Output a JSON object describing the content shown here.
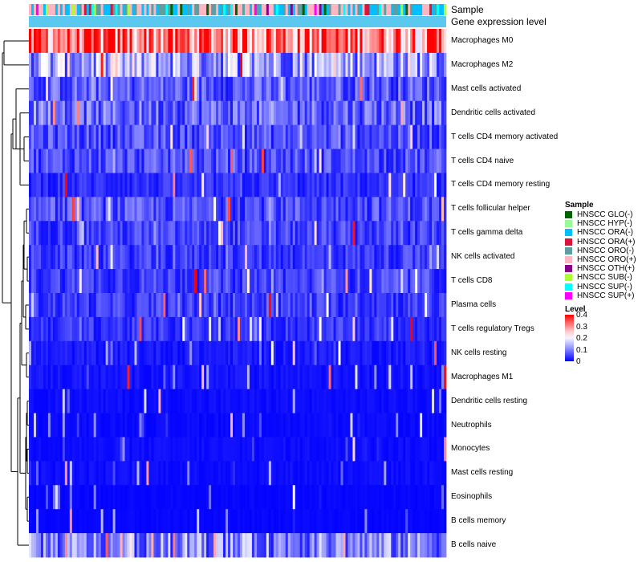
{
  "chart_data": {
    "type": "heatmap",
    "annotations": [
      "Sample",
      "Gene expression level"
    ],
    "rows": [
      {
        "name": "Macrophages M0",
        "mean": 0.3
      },
      {
        "name": "Macrophages M2",
        "mean": 0.13
      },
      {
        "name": "Mast cells activated",
        "mean": 0.07
      },
      {
        "name": "Dendritic cells activated",
        "mean": 0.08
      },
      {
        "name": "T cells CD4 memory activated",
        "mean": 0.06
      },
      {
        "name": "T cells CD4 naive",
        "mean": 0.06
      },
      {
        "name": "T cells CD4 memory resting",
        "mean": 0.035
      },
      {
        "name": "T cells follicular helper",
        "mean": 0.06
      },
      {
        "name": "T cells gamma delta",
        "mean": 0.05
      },
      {
        "name": "NK cells activated",
        "mean": 0.045
      },
      {
        "name": "T cells CD8",
        "mean": 0.05
      },
      {
        "name": "Plasma cells",
        "mean": 0.045
      },
      {
        "name": "T cells regulatory  Tregs",
        "mean": 0.04
      },
      {
        "name": "NK cells resting",
        "mean": 0.02
      },
      {
        "name": "Macrophages M1",
        "mean": 0.015
      },
      {
        "name": "Dendritic cells resting",
        "mean": 0.01
      },
      {
        "name": "Neutrophils",
        "mean": 0.008
      },
      {
        "name": "Monocytes",
        "mean": 0.01
      },
      {
        "name": "Mast cells resting",
        "mean": 0.01
      },
      {
        "name": "Eosinophils",
        "mean": 0.005
      },
      {
        "name": "B cells memory",
        "mean": 0.005
      },
      {
        "name": "B cells naive",
        "mean": 0.1
      }
    ],
    "sample_legend": {
      "title": "Sample",
      "items": [
        {
          "label": "HNSCC GLO(-)",
          "color": "#006400"
        },
        {
          "label": "HNSCC HYP(-)",
          "color": "#98fb98"
        },
        {
          "label": "HNSCC ORA(-)",
          "color": "#00bfff"
        },
        {
          "label": "HNSCC ORA(+)",
          "color": "#dc143c"
        },
        {
          "label": "HNSCC ORO(-)",
          "color": "#5f9ea0"
        },
        {
          "label": "HNSCC ORO(+)",
          "color": "#ffb6c1"
        },
        {
          "label": "HNSCC OTH(+)",
          "color": "#8b008b"
        },
        {
          "label": "HNSCC SUB(-)",
          "color": "#adff2f"
        },
        {
          "label": "HNSCC SUP(-)",
          "color": "#00ffff"
        },
        {
          "label": "HNSCC SUP(+)",
          "color": "#ff00ff"
        }
      ]
    },
    "level_legend": {
      "title": "Level",
      "ticks": [
        "0.4",
        "0.3",
        "0.2",
        "0.1",
        "0"
      ],
      "range": [
        0,
        0.4
      ]
    },
    "expression_level_color": "#5bc8f0",
    "n_samples": 174
  }
}
